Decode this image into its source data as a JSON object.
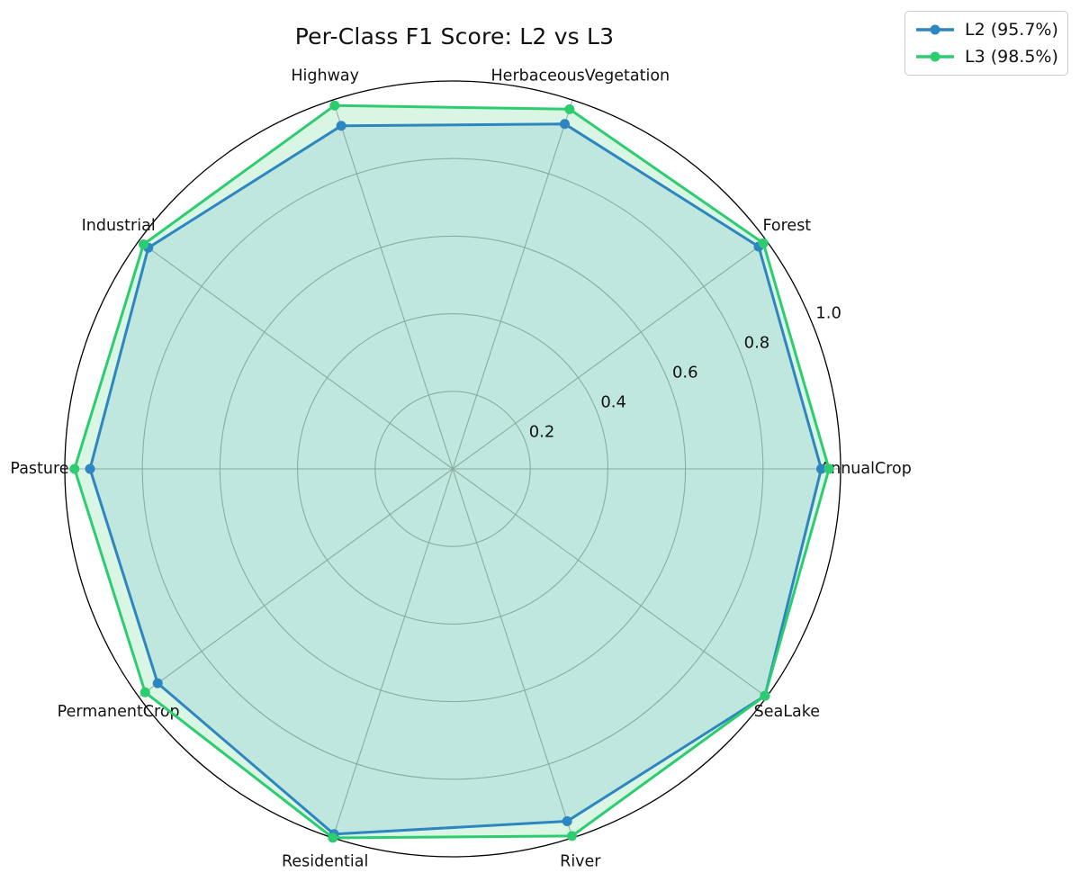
{
  "figure": {
    "title": "Per-Class F1 Score: L2 vs L3",
    "background_color": "#ffffff"
  },
  "legend": {
    "position": "upper right",
    "items": [
      {
        "label": "L2 (95.7%)",
        "color": "#2E86C1"
      },
      {
        "label": "L3 (98.5%)",
        "color": "#2ECC71"
      }
    ]
  },
  "chart_data": {
    "type": "radar",
    "title": "Per-Class F1 Score: L2 vs L3",
    "categories": [
      "AnnualCrop",
      "Forest",
      "HerbaceousVegetation",
      "Highway",
      "Industrial",
      "Pasture",
      "PermanentCrop",
      "Residential",
      "River",
      "SeaLake"
    ],
    "series": [
      {
        "name": "L2 (95.7%)",
        "color": "#2E86C1",
        "fill_opacity": 0.15,
        "values": [
          0.95,
          0.975,
          0.935,
          0.93,
          0.97,
          0.935,
          0.94,
          0.99,
          0.955,
          0.995
        ]
      },
      {
        "name": "L3 (98.5%)",
        "color": "#2ECC71",
        "fill_opacity": 0.18,
        "values": [
          0.97,
          0.99,
          0.975,
          0.985,
          0.985,
          0.975,
          0.98,
          1.0,
          0.995,
          0.995
        ]
      }
    ],
    "radial_ticks": [
      0.2,
      0.4,
      0.6,
      0.8,
      1.0
    ],
    "radial_tick_labels": [
      "0.2",
      "0.4",
      "0.6",
      "0.8",
      "1.0"
    ],
    "rlim": [
      0,
      1.0
    ],
    "start_angle_deg": 0,
    "direction": "counterclockwise",
    "radial_label_angle_deg": 22.5,
    "grid": true,
    "grid_color": "#b3abab",
    "outline_color": "#000000",
    "legend_position": "upper right"
  }
}
